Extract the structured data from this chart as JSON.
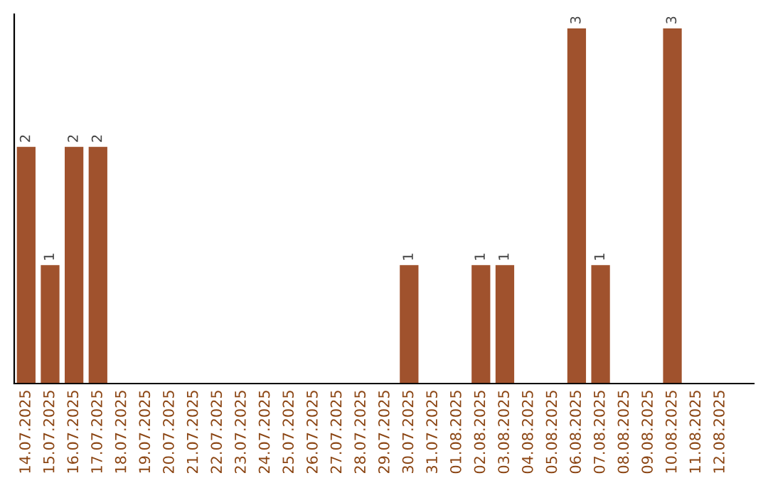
{
  "chart_data": {
    "type": "bar",
    "categories": [
      "14.07.2025",
      "15.07.2025",
      "16.07.2025",
      "17.07.2025",
      "18.07.2025",
      "19.07.2025",
      "20.07.2025",
      "21.07.2025",
      "22.07.2025",
      "23.07.2025",
      "24.07.2025",
      "25.07.2025",
      "26.07.2025",
      "27.07.2025",
      "28.07.2025",
      "29.07.2025",
      "30.07.2025",
      "31.07.2025",
      "01.08.2025",
      "02.08.2025",
      "03.08.2025",
      "04.08.2025",
      "05.08.2025",
      "06.08.2025",
      "07.08.2025",
      "08.08.2025",
      "09.08.2025",
      "10.08.2025",
      "11.08.2025",
      "12.08.2025"
    ],
    "values": [
      2,
      1,
      2,
      2,
      0,
      0,
      0,
      0,
      0,
      0,
      0,
      0,
      0,
      0,
      0,
      0,
      1,
      0,
      0,
      1,
      1,
      0,
      0,
      3,
      1,
      0,
      0,
      3,
      0,
      0
    ],
    "color": "#a0522d",
    "value_labels": [
      "2",
      "1",
      "2",
      "2",
      null,
      null,
      null,
      null,
      null,
      null,
      null,
      null,
      null,
      null,
      null,
      null,
      "1",
      null,
      null,
      "1",
      "1",
      null,
      null,
      "3",
      "1",
      null,
      null,
      "3",
      null,
      null
    ],
    "grid": false,
    "legend": false
  }
}
